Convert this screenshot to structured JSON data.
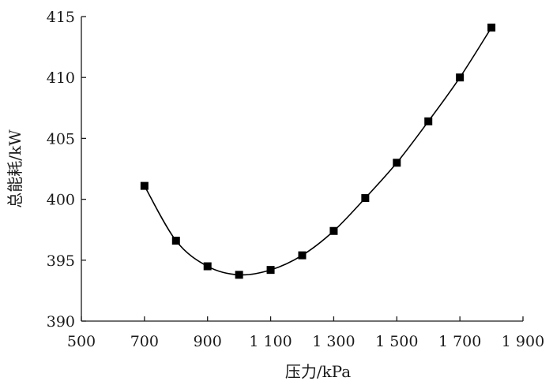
{
  "chart_data": {
    "type": "scatter",
    "title": "",
    "xlabel": "压力/kPa",
    "ylabel": "总能耗/kW",
    "xlim": [
      500,
      1900
    ],
    "ylim": [
      390,
      415
    ],
    "x_ticks": [
      500,
      700,
      900,
      1100,
      1300,
      1500,
      1700,
      1900
    ],
    "x_tick_labels": [
      "500",
      "700",
      "900",
      "1 100",
      "1 300",
      "1 500",
      "1 700",
      "1 900"
    ],
    "y_ticks": [
      390,
      395,
      400,
      405,
      410,
      415
    ],
    "y_tick_labels": [
      "390",
      "395",
      "400",
      "405",
      "410",
      "415"
    ],
    "grid": false,
    "series": [
      {
        "markers": "square",
        "line": "smooth fitted curve",
        "x": [
          700,
          800,
          900,
          1000,
          1100,
          1200,
          1300,
          1400,
          1500,
          1600,
          1700,
          1800
        ],
        "y": [
          401.1,
          396.6,
          394.5,
          393.8,
          394.2,
          395.4,
          397.4,
          400.1,
          403.0,
          406.4,
          410.0,
          414.1
        ]
      }
    ]
  }
}
